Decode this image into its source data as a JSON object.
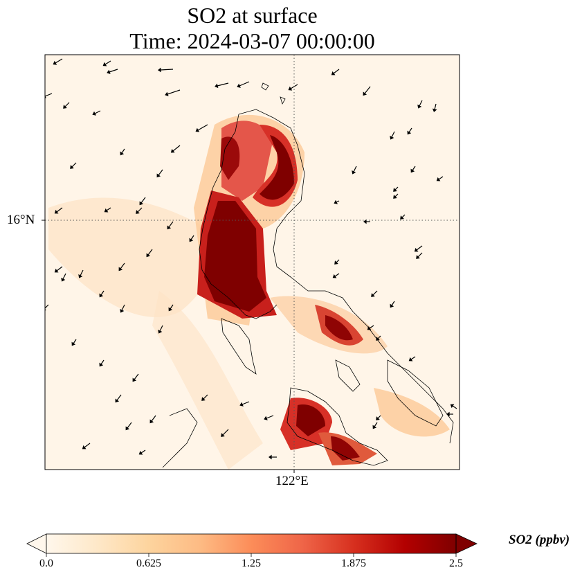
{
  "title": {
    "line1": "SO2 at surface",
    "line2": "Time: 2024-03-07 00:00:00"
  },
  "map": {
    "lat_tick_label": "16°N",
    "lon_tick_label": "122°E",
    "background_color": "#fff5e8",
    "gridline_style": "dotted",
    "wind_vectors": "shown (black arrows)",
    "coastlines": "shown (black outline)"
  },
  "colorbar": {
    "label": "SO2 (ppbv)",
    "min": 0.0,
    "max": 2.5,
    "ticks": [
      "0.0",
      "0.625",
      "1.25",
      "1.875",
      "2.5"
    ],
    "colormap": "OrRd",
    "colors": [
      "#fff7ec",
      "#fee8c8",
      "#fdd49e",
      "#fdbb84",
      "#fc8d59",
      "#ef6548",
      "#d7301f",
      "#b30000",
      "#7f0000"
    ],
    "extend": "both"
  }
}
